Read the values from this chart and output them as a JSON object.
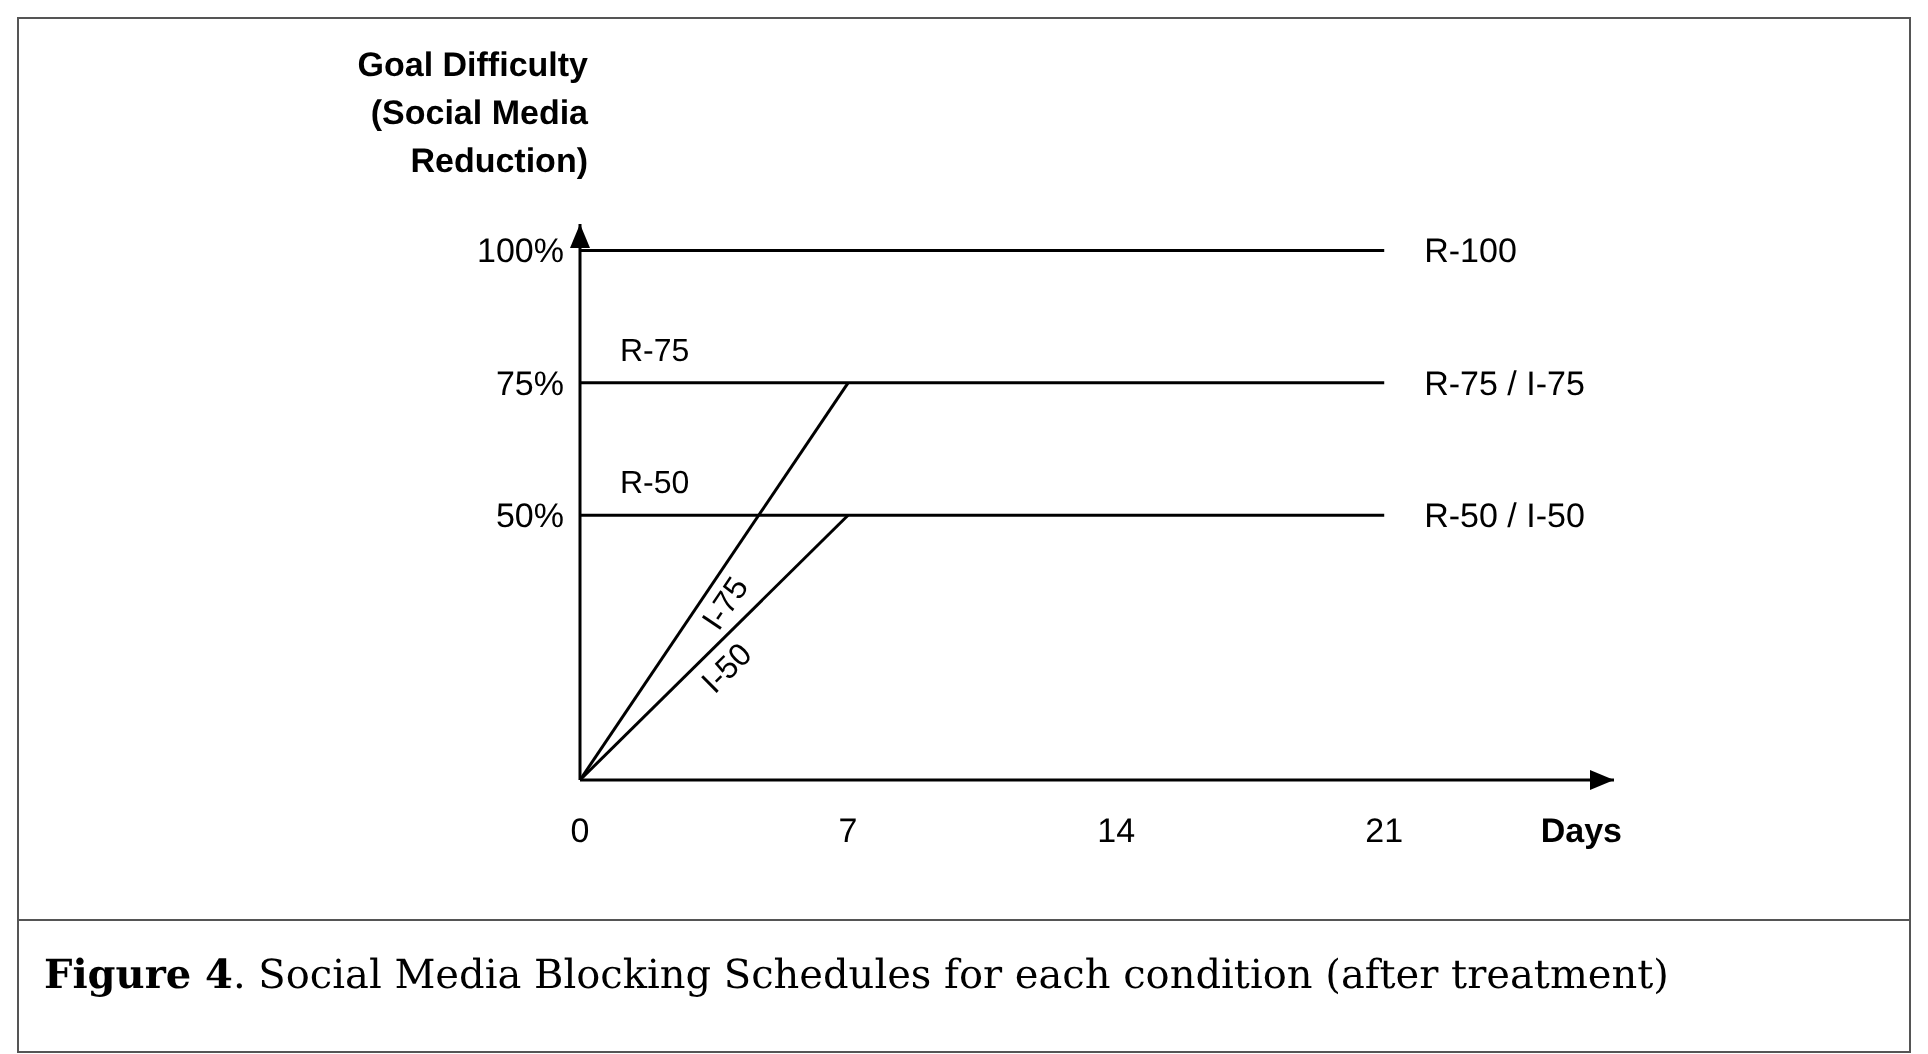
{
  "chart_data": {
    "type": "line",
    "ylabel": "Goal Difficulty (Social Media Reduction)",
    "xlabel": "Days",
    "xlim": [
      0,
      27
    ],
    "ylim": [
      0,
      105
    ],
    "xticks": [
      0,
      7,
      14,
      21
    ],
    "yticks": [
      {
        "value": 50,
        "label": "50%"
      },
      {
        "value": 75,
        "label": "75%"
      },
      {
        "value": 100,
        "label": "100%"
      }
    ],
    "grid": false,
    "marker": "none",
    "line_style": "solid",
    "series": [
      {
        "color": "#000000",
        "x": [
          0,
          21
        ],
        "values": [
          100,
          100
        ]
      },
      {
        "name": "R-75",
        "color": "#000000",
        "x": [
          0,
          21
        ],
        "values": [
          75,
          75
        ]
      },
      {
        "name": "R-50",
        "color": "#000000",
        "x": [
          0,
          21
        ],
        "values": [
          50,
          50
        ]
      },
      {
        "name": "I-75",
        "color": "#000000",
        "x": [
          0,
          7
        ],
        "values": [
          0,
          75
        ]
      },
      {
        "name": "I-50",
        "color": "#000000",
        "x": [
          0,
          7
        ],
        "values": [
          0,
          50
        ]
      }
    ],
    "annotations": [
      "R-100",
      "R-75 / I-75",
      "R-50 / I-50",
      "Figure 4. Social Media Blocking Schedules for each condition (after treatment)"
    ]
  }
}
